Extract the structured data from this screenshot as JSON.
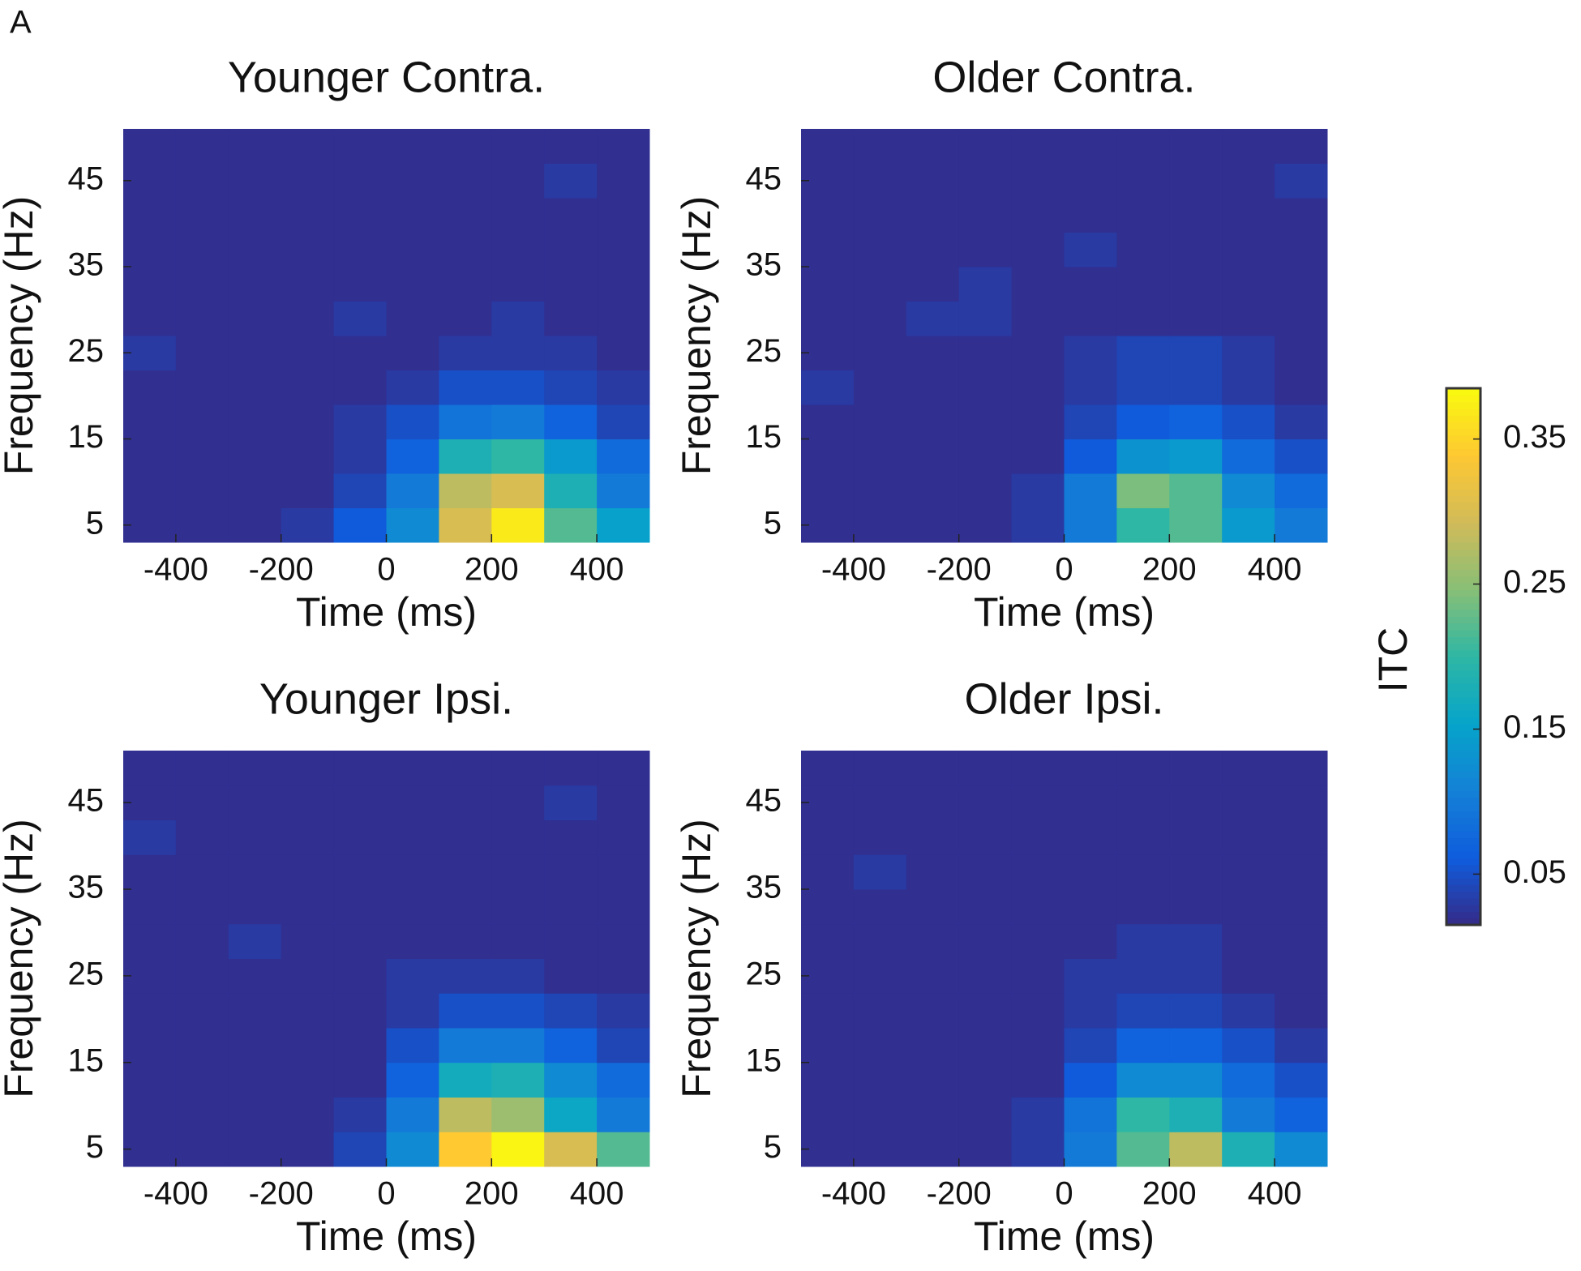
{
  "figure_label": "A",
  "colorbar": {
    "label": "ITC",
    "clim": [
      0.015,
      0.385
    ],
    "ticks": [
      0.05,
      0.15,
      0.25,
      0.35
    ],
    "colormap": [
      "#352a87",
      "#0f5cdd",
      "#1481d6",
      "#06a4ca",
      "#2eb7a4",
      "#87bf77",
      "#d1bb59",
      "#fec832",
      "#f9fb0e"
    ]
  },
  "chart_data": [
    {
      "type": "heatmap",
      "title": "Younger Contra.",
      "xlabel": "Time (ms)",
      "ylabel": "Frequency (Hz)",
      "x": [
        -450,
        -350,
        -250,
        -150,
        -50,
        50,
        150,
        250,
        350,
        450
      ],
      "y": [
        5,
        9,
        13,
        17,
        21,
        25,
        29,
        33,
        37,
        41,
        45,
        49
      ],
      "xlim": [
        -500,
        500
      ],
      "ylim": [
        3,
        51
      ],
      "xticks": [
        -400,
        -200,
        0,
        200,
        400
      ],
      "yticks": [
        5,
        15,
        25,
        35,
        45
      ],
      "values": [
        [
          0.02,
          0.02,
          0.02,
          0.03,
          0.06,
          0.12,
          0.3,
          0.37,
          0.22,
          0.15
        ],
        [
          0.02,
          0.02,
          0.02,
          0.02,
          0.04,
          0.1,
          0.28,
          0.3,
          0.18,
          0.1
        ],
        [
          0.02,
          0.02,
          0.02,
          0.02,
          0.03,
          0.07,
          0.18,
          0.2,
          0.14,
          0.08
        ],
        [
          0.02,
          0.02,
          0.02,
          0.02,
          0.03,
          0.05,
          0.09,
          0.1,
          0.07,
          0.04
        ],
        [
          0.02,
          0.02,
          0.02,
          0.02,
          0.02,
          0.03,
          0.05,
          0.05,
          0.04,
          0.03
        ],
        [
          0.03,
          0.02,
          0.02,
          0.02,
          0.02,
          0.02,
          0.03,
          0.03,
          0.03,
          0.02
        ],
        [
          0.02,
          0.02,
          0.02,
          0.02,
          0.03,
          0.02,
          0.02,
          0.03,
          0.02,
          0.02
        ],
        [
          0.02,
          0.02,
          0.02,
          0.02,
          0.02,
          0.02,
          0.02,
          0.02,
          0.02,
          0.02
        ],
        [
          0.02,
          0.02,
          0.02,
          0.02,
          0.02,
          0.02,
          0.02,
          0.02,
          0.02,
          0.02
        ],
        [
          0.02,
          0.02,
          0.02,
          0.02,
          0.02,
          0.02,
          0.02,
          0.02,
          0.02,
          0.02
        ],
        [
          0.02,
          0.02,
          0.02,
          0.02,
          0.02,
          0.02,
          0.02,
          0.02,
          0.03,
          0.02
        ],
        [
          0.02,
          0.02,
          0.02,
          0.02,
          0.02,
          0.02,
          0.02,
          0.02,
          0.02,
          0.02
        ]
      ]
    },
    {
      "type": "heatmap",
      "title": "Older Contra.",
      "xlabel": "Time (ms)",
      "ylabel": "Frequency (Hz)",
      "x": [
        -450,
        -350,
        -250,
        -150,
        -50,
        50,
        150,
        250,
        350,
        450
      ],
      "y": [
        5,
        9,
        13,
        17,
        21,
        25,
        29,
        33,
        37,
        41,
        45,
        49
      ],
      "xlim": [
        -500,
        500
      ],
      "ylim": [
        3,
        51
      ],
      "xticks": [
        -400,
        -200,
        0,
        200,
        400
      ],
      "yticks": [
        5,
        15,
        25,
        35,
        45
      ],
      "values": [
        [
          0.02,
          0.02,
          0.02,
          0.02,
          0.03,
          0.1,
          0.2,
          0.22,
          0.14,
          0.1
        ],
        [
          0.02,
          0.02,
          0.02,
          0.02,
          0.03,
          0.1,
          0.24,
          0.22,
          0.12,
          0.08
        ],
        [
          0.02,
          0.02,
          0.02,
          0.02,
          0.02,
          0.06,
          0.13,
          0.14,
          0.08,
          0.05
        ],
        [
          0.02,
          0.02,
          0.02,
          0.02,
          0.02,
          0.04,
          0.06,
          0.07,
          0.05,
          0.03
        ],
        [
          0.03,
          0.02,
          0.02,
          0.02,
          0.02,
          0.03,
          0.04,
          0.04,
          0.03,
          0.02
        ],
        [
          0.02,
          0.02,
          0.02,
          0.02,
          0.02,
          0.03,
          0.04,
          0.04,
          0.03,
          0.02
        ],
        [
          0.02,
          0.02,
          0.03,
          0.03,
          0.02,
          0.02,
          0.02,
          0.02,
          0.02,
          0.02
        ],
        [
          0.02,
          0.02,
          0.02,
          0.03,
          0.02,
          0.02,
          0.02,
          0.02,
          0.02,
          0.02
        ],
        [
          0.02,
          0.02,
          0.02,
          0.02,
          0.02,
          0.03,
          0.02,
          0.02,
          0.02,
          0.02
        ],
        [
          0.02,
          0.02,
          0.02,
          0.02,
          0.02,
          0.02,
          0.02,
          0.02,
          0.02,
          0.02
        ],
        [
          0.02,
          0.02,
          0.02,
          0.02,
          0.02,
          0.02,
          0.02,
          0.02,
          0.02,
          0.03
        ],
        [
          0.02,
          0.02,
          0.02,
          0.02,
          0.02,
          0.02,
          0.02,
          0.02,
          0.02,
          0.02
        ]
      ]
    },
    {
      "type": "heatmap",
      "title": "Younger Ipsi.",
      "xlabel": "Time (ms)",
      "ylabel": "Frequency (Hz)",
      "x": [
        -450,
        -350,
        -250,
        -150,
        -50,
        50,
        150,
        250,
        350,
        450
      ],
      "y": [
        5,
        9,
        13,
        17,
        21,
        25,
        29,
        33,
        37,
        41,
        45,
        49
      ],
      "xlim": [
        -500,
        500
      ],
      "ylim": [
        3,
        51
      ],
      "xticks": [
        -400,
        -200,
        0,
        200,
        400
      ],
      "yticks": [
        5,
        15,
        25,
        35,
        45
      ],
      "values": [
        [
          0.02,
          0.02,
          0.02,
          0.02,
          0.04,
          0.12,
          0.34,
          0.38,
          0.3,
          0.22
        ],
        [
          0.02,
          0.02,
          0.02,
          0.02,
          0.03,
          0.1,
          0.28,
          0.26,
          0.16,
          0.1
        ],
        [
          0.02,
          0.02,
          0.02,
          0.02,
          0.02,
          0.07,
          0.17,
          0.18,
          0.12,
          0.08
        ],
        [
          0.02,
          0.02,
          0.02,
          0.02,
          0.02,
          0.05,
          0.1,
          0.1,
          0.07,
          0.04
        ],
        [
          0.02,
          0.02,
          0.02,
          0.02,
          0.02,
          0.03,
          0.05,
          0.05,
          0.04,
          0.03
        ],
        [
          0.02,
          0.02,
          0.02,
          0.02,
          0.02,
          0.03,
          0.03,
          0.03,
          0.02,
          0.02
        ],
        [
          0.02,
          0.02,
          0.03,
          0.02,
          0.02,
          0.02,
          0.02,
          0.02,
          0.02,
          0.02
        ],
        [
          0.02,
          0.02,
          0.02,
          0.02,
          0.02,
          0.02,
          0.02,
          0.02,
          0.02,
          0.02
        ],
        [
          0.02,
          0.02,
          0.02,
          0.02,
          0.02,
          0.02,
          0.02,
          0.02,
          0.02,
          0.02
        ],
        [
          0.03,
          0.02,
          0.02,
          0.02,
          0.02,
          0.02,
          0.02,
          0.02,
          0.02,
          0.02
        ],
        [
          0.02,
          0.02,
          0.02,
          0.02,
          0.02,
          0.02,
          0.02,
          0.02,
          0.03,
          0.02
        ],
        [
          0.02,
          0.02,
          0.02,
          0.02,
          0.02,
          0.02,
          0.02,
          0.02,
          0.02,
          0.02
        ]
      ]
    },
    {
      "type": "heatmap",
      "title": "Older Ipsi.",
      "xlabel": "Time (ms)",
      "ylabel": "Frequency (Hz)",
      "x": [
        -450,
        -350,
        -250,
        -150,
        -50,
        50,
        150,
        250,
        350,
        450
      ],
      "y": [
        5,
        9,
        13,
        17,
        21,
        25,
        29,
        33,
        37,
        41,
        45,
        49
      ],
      "xlim": [
        -500,
        500
      ],
      "ylim": [
        3,
        51
      ],
      "xticks": [
        -400,
        -200,
        0,
        200,
        400
      ],
      "yticks": [
        5,
        15,
        25,
        35,
        45
      ],
      "values": [
        [
          0.02,
          0.02,
          0.02,
          0.02,
          0.03,
          0.1,
          0.22,
          0.28,
          0.18,
          0.12
        ],
        [
          0.02,
          0.02,
          0.02,
          0.02,
          0.03,
          0.09,
          0.2,
          0.18,
          0.1,
          0.07
        ],
        [
          0.02,
          0.02,
          0.02,
          0.02,
          0.02,
          0.06,
          0.12,
          0.12,
          0.08,
          0.05
        ],
        [
          0.02,
          0.02,
          0.02,
          0.02,
          0.02,
          0.04,
          0.07,
          0.07,
          0.05,
          0.03
        ],
        [
          0.02,
          0.02,
          0.02,
          0.02,
          0.02,
          0.03,
          0.04,
          0.04,
          0.03,
          0.02
        ],
        [
          0.02,
          0.02,
          0.02,
          0.02,
          0.02,
          0.03,
          0.03,
          0.03,
          0.02,
          0.02
        ],
        [
          0.02,
          0.02,
          0.02,
          0.02,
          0.02,
          0.02,
          0.03,
          0.03,
          0.02,
          0.02
        ],
        [
          0.02,
          0.02,
          0.02,
          0.02,
          0.02,
          0.02,
          0.02,
          0.02,
          0.02,
          0.02
        ],
        [
          0.02,
          0.03,
          0.02,
          0.02,
          0.02,
          0.02,
          0.02,
          0.02,
          0.02,
          0.02
        ],
        [
          0.02,
          0.02,
          0.02,
          0.02,
          0.02,
          0.02,
          0.02,
          0.02,
          0.02,
          0.02
        ],
        [
          0.02,
          0.02,
          0.02,
          0.02,
          0.02,
          0.02,
          0.02,
          0.02,
          0.02,
          0.02
        ],
        [
          0.02,
          0.02,
          0.02,
          0.02,
          0.02,
          0.02,
          0.02,
          0.02,
          0.02,
          0.02
        ]
      ]
    }
  ]
}
